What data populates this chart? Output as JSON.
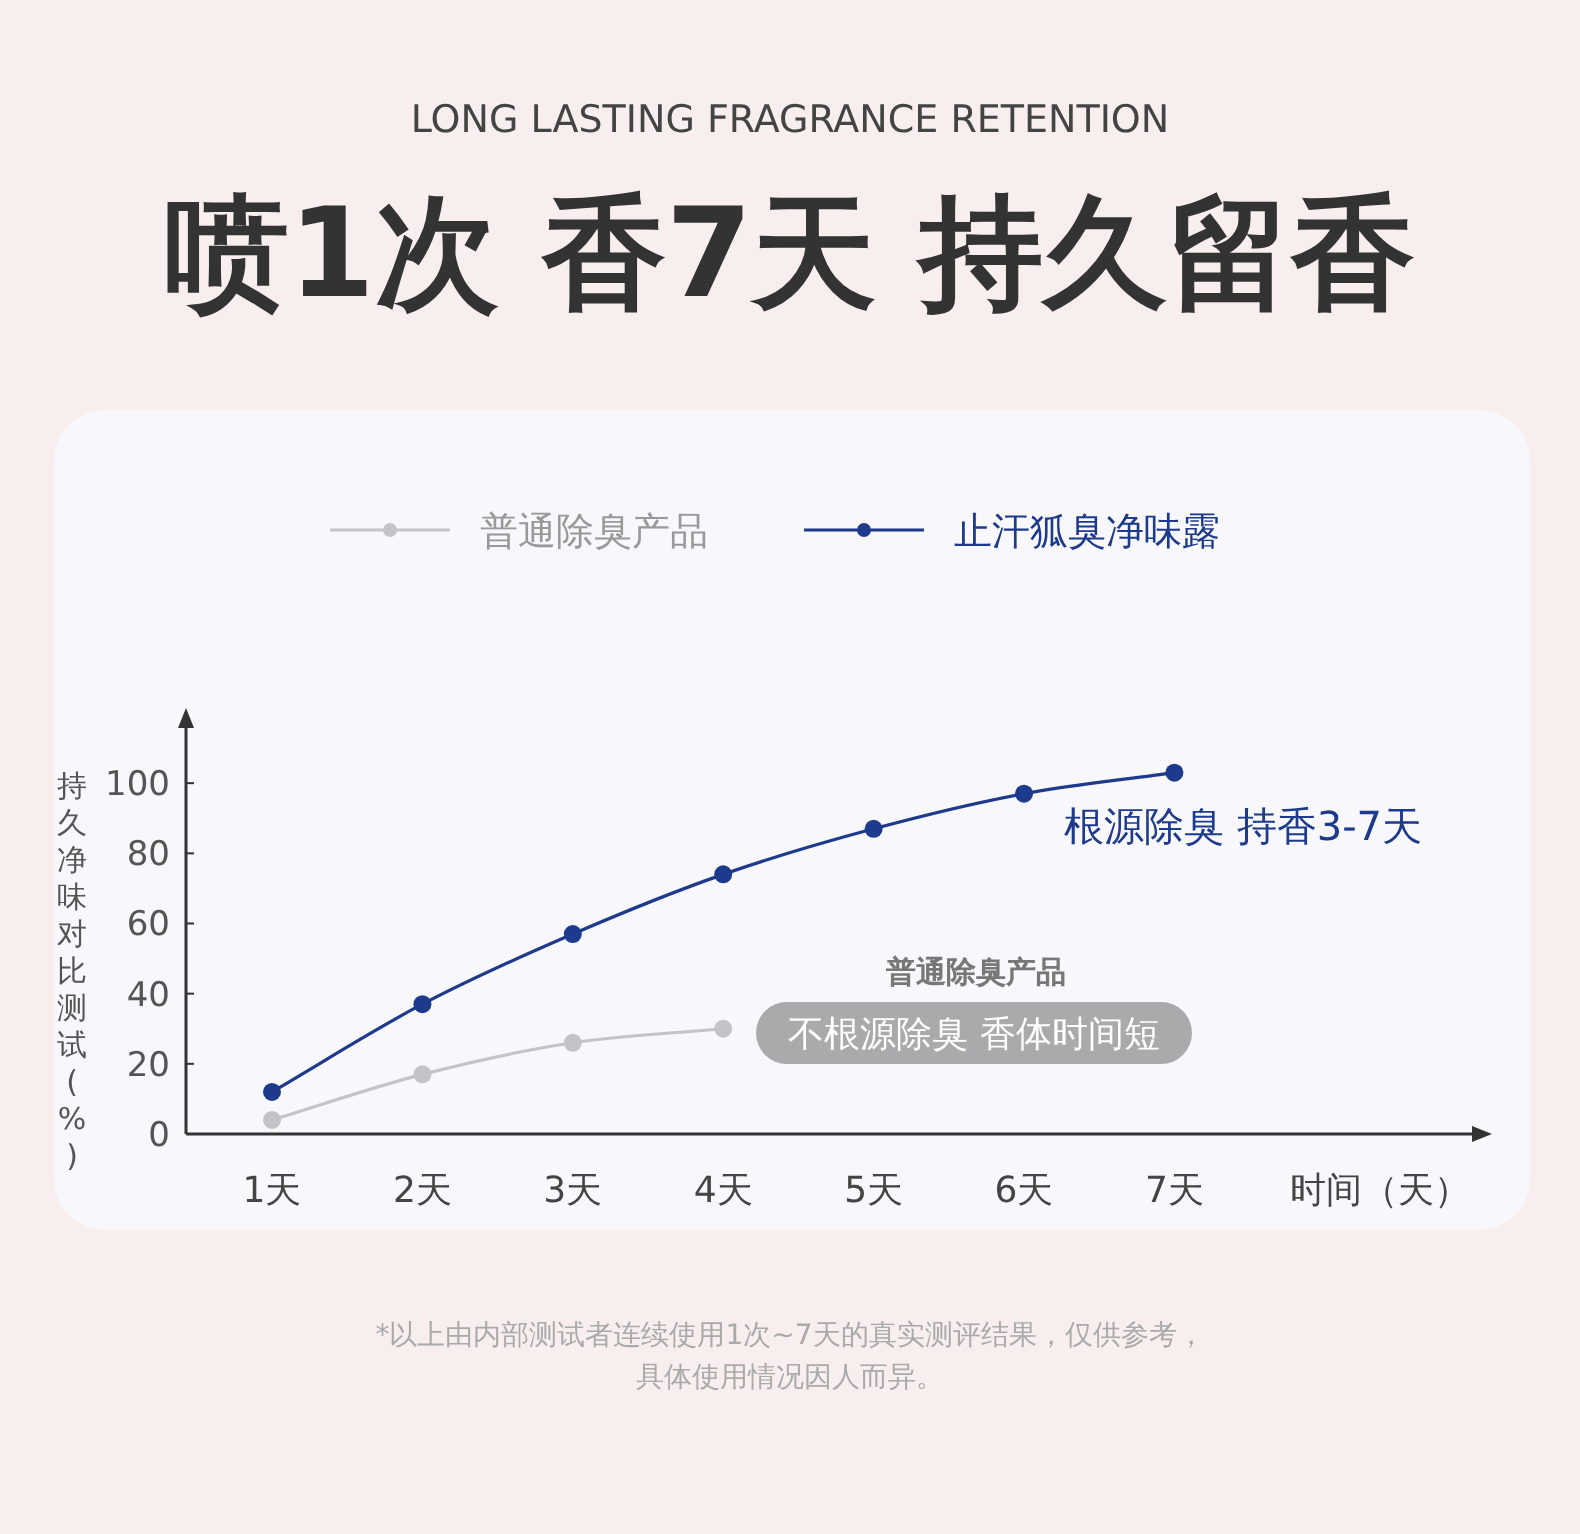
{
  "chart_data": {
    "type": "line",
    "subtitle": "LONG LASTING FRAGRANCE RETENTION",
    "title": "喷1次 香7天 持久留香",
    "xlabel": "时间（天）",
    "ylabel": "持久净味对比测试(%)",
    "categories": [
      "1天",
      "2天",
      "3天",
      "4天",
      "5天",
      "6天",
      "7天"
    ],
    "series": [
      {
        "name": "普通除臭产品",
        "color": "#c4c4c8",
        "values": [
          4,
          17,
          26,
          30,
          null,
          null,
          null
        ]
      },
      {
        "name": "止汗狐臭净味露",
        "color": "#1e3a8c",
        "values": [
          12,
          37,
          57,
          74,
          87,
          97,
          103
        ]
      }
    ],
    "ylim": [
      0,
      118
    ],
    "yticks": [
      0,
      20,
      40,
      60,
      80,
      100
    ],
    "marker": "circle",
    "line_style": "solid",
    "legend": "top",
    "grid": false,
    "annotations": [
      "根源除臭 持香3-7天",
      "普通除臭产品",
      "不根源除臭 香体时间短",
      "*以上由内部测试者连续使用1次~7天的真实测评结果，仅供参考，",
      "具体使用情况因人而异。"
    ]
  }
}
